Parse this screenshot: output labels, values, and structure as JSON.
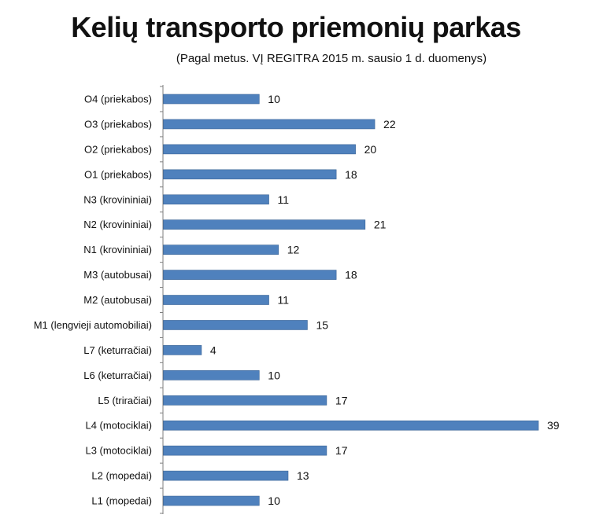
{
  "chart_data": {
    "type": "bar",
    "orientation": "horizontal",
    "title": "Kelių transporto priemonių parkas",
    "subtitle": "(Pagal metus. VĮ REGITRA 2015 m. sausio 1 d. duomenys)",
    "categories": [
      "O4 (priekabos)",
      "O3 (priekabos)",
      "O2 (priekabos)",
      "O1 (priekabos)",
      "N3 (krovininiai)",
      "N2 (krovininiai)",
      "N1 (krovininiai)",
      "M3 (autobusai)",
      "M2 (autobusai)",
      "M1 (lengvieji automobiliai)",
      "L7 (keturračiai)",
      "L6 (keturračiai)",
      "L5 (triračiai)",
      "L4 (motociklai)",
      "L3 (motociklai)",
      "L2 (mopedai)",
      "L1 (mopedai)"
    ],
    "values": [
      10,
      22,
      20,
      18,
      11,
      21,
      12,
      18,
      11,
      15,
      4,
      10,
      17,
      39,
      17,
      13,
      10
    ],
    "xlim": [
      0,
      41
    ],
    "grid": false,
    "legend": "none",
    "bar_color": "#4f81bd",
    "bar_edge_color": "#3a6496",
    "axis_color": "#7f7f7f"
  }
}
